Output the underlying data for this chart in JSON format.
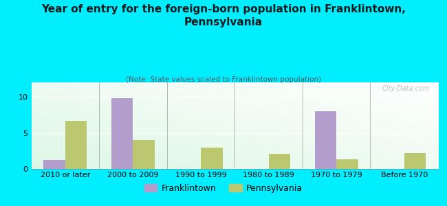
{
  "title": "Year of entry for the foreign-born population in Franklintown,\nPennsylvania",
  "subtitle": "(Note: State values scaled to Franklintown population)",
  "categories": [
    "2010 or later",
    "2000 to 2009",
    "1990 to 1999",
    "1980 to 1989",
    "1970 to 1979",
    "Before 1970"
  ],
  "franklintown_values": [
    1.2,
    9.8,
    0,
    0,
    8.0,
    0
  ],
  "pennsylvania_values": [
    6.7,
    4.0,
    3.0,
    2.1,
    1.3,
    2.2
  ],
  "franklintown_color": "#b39dcc",
  "pennsylvania_color": "#bcc870",
  "background_color": "#00eeff",
  "title_fontsize": 11,
  "subtitle_fontsize": 7.5,
  "ylabel_ticks": [
    0,
    5,
    10
  ],
  "ylim": [
    0,
    12
  ],
  "watermark": "City-Data.com",
  "bar_width": 0.32
}
